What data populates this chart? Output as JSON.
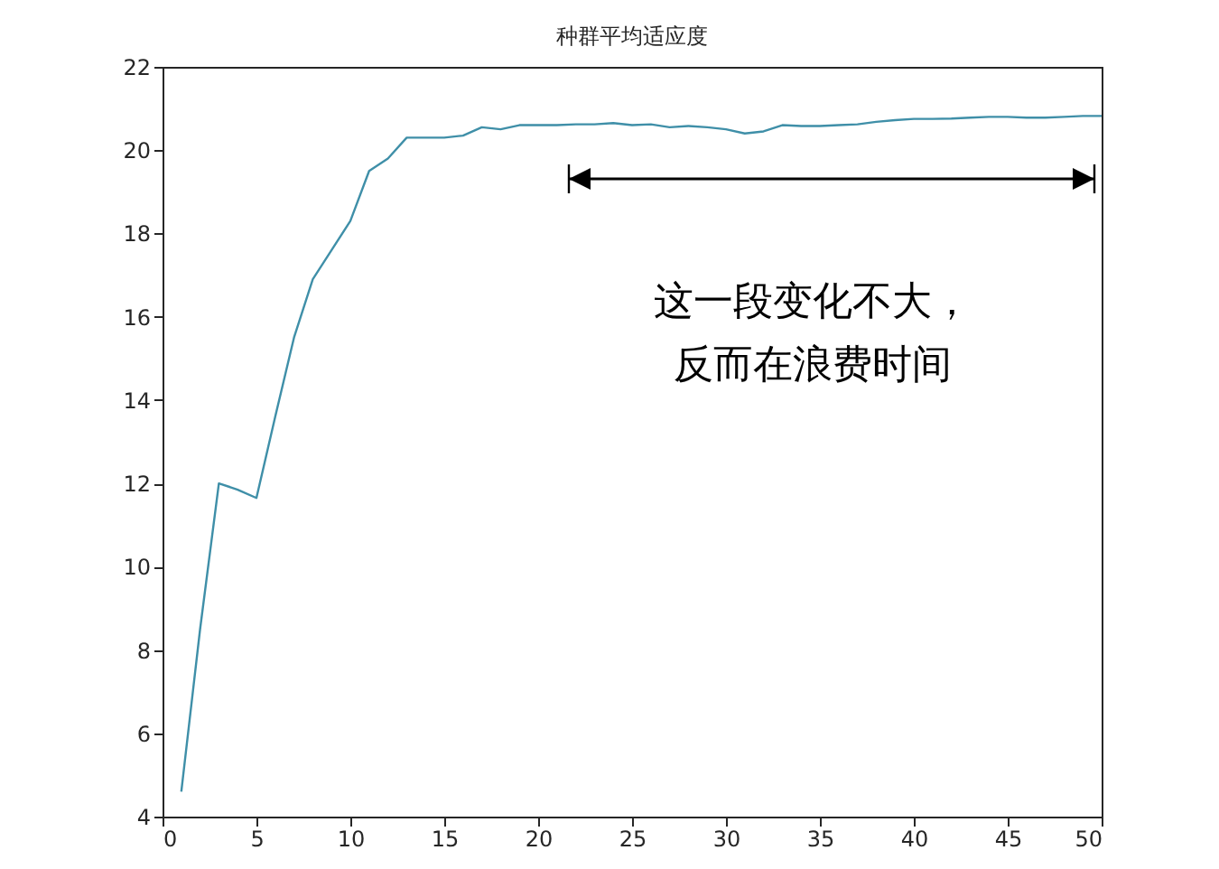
{
  "chart_data": {
    "type": "line",
    "title": "种群平均适应度",
    "x": [
      1,
      2,
      3,
      4,
      5,
      6,
      7,
      8,
      9,
      10,
      11,
      12,
      13,
      14,
      15,
      16,
      17,
      18,
      19,
      20,
      21,
      22,
      23,
      24,
      25,
      26,
      27,
      28,
      29,
      30,
      31,
      32,
      33,
      34,
      35,
      36,
      37,
      38,
      39,
      40,
      41,
      42,
      43,
      44,
      45,
      46,
      47,
      48,
      49,
      50
    ],
    "series": [
      {
        "color": "#3f8fa8",
        "values": [
          4.6,
          8.5,
          12.0,
          11.85,
          11.65,
          13.6,
          15.5,
          16.9,
          17.6,
          18.3,
          19.5,
          19.8,
          20.3,
          20.3,
          20.3,
          20.35,
          20.55,
          20.5,
          20.6,
          20.6,
          20.6,
          20.62,
          20.62,
          20.65,
          20.6,
          20.62,
          20.55,
          20.58,
          20.55,
          20.5,
          20.4,
          20.45,
          20.6,
          20.58,
          20.58,
          20.6,
          20.62,
          20.68,
          20.72,
          20.75,
          20.75,
          20.76,
          20.78,
          20.8,
          20.8,
          20.78,
          20.78,
          20.8,
          20.82,
          20.82
        ]
      }
    ],
    "xlim": [
      0,
      50
    ],
    "xticks": [
      0,
      5,
      10,
      15,
      20,
      25,
      30,
      35,
      40,
      45,
      50
    ],
    "ylim": [
      4,
      22
    ],
    "yticks": [
      4,
      6,
      8,
      10,
      12,
      14,
      16,
      18,
      20,
      22
    ],
    "grid": false,
    "marker": "none",
    "line_style": "solid",
    "annotations": [
      "这一段变化不大，",
      "反而在浪费时间"
    ]
  }
}
